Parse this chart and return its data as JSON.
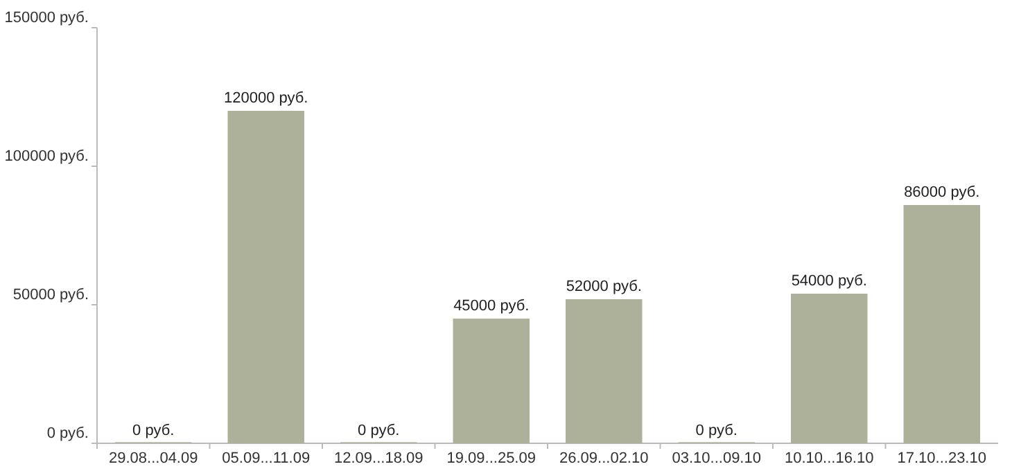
{
  "chart_data": {
    "type": "bar",
    "categories": [
      "29.08...04.09",
      "05.09...11.09",
      "12.09...18.09",
      "19.09...25.09",
      "26.09...02.10",
      "03.10...09.10",
      "10.10...16.10",
      "17.10...23.10"
    ],
    "values": [
      0,
      120000,
      0,
      45000,
      52000,
      0,
      54000,
      86000
    ],
    "value_labels": [
      "0 руб.",
      "120000 руб.",
      "0 руб.",
      "45000 руб.",
      "52000 руб.",
      "0 руб.",
      "54000 руб.",
      "86000 руб."
    ],
    "color": "#adb19a",
    "ylim": [
      0,
      150000
    ],
    "yticks": [
      {
        "value": 0,
        "label": "0 руб."
      },
      {
        "value": 50000,
        "label": "50000 руб."
      },
      {
        "value": 100000,
        "label": "100000 руб."
      },
      {
        "value": 150000,
        "label": "150000 руб."
      }
    ],
    "grid": false
  }
}
